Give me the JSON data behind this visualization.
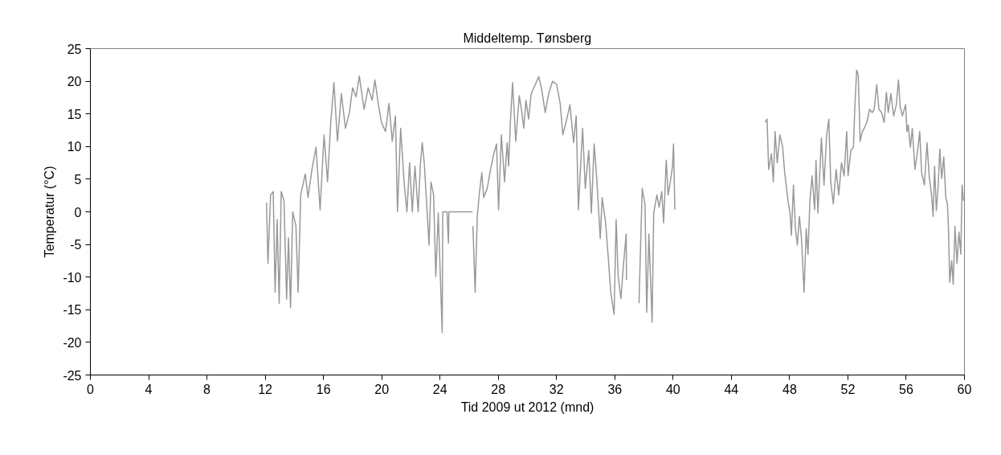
{
  "chart_data": {
    "type": "line",
    "title": "Middeltemp. Tønsberg",
    "xlabel": "Tid 2009 ut 2012 (mnd)",
    "ylabel": "Temperatur (°C)",
    "xlim": [
      0,
      60
    ],
    "xticks": [
      0,
      4,
      8,
      12,
      16,
      20,
      24,
      28,
      32,
      36,
      40,
      44,
      48,
      52,
      56,
      60
    ],
    "ylim": [
      -25,
      25
    ],
    "yticks": [
      -25,
      -20,
      -15,
      -10,
      -5,
      0,
      5,
      10,
      15,
      20,
      25
    ],
    "grid": false,
    "line_style": "solid",
    "series": [
      {
        "color": "#999999",
        "x": [
          12.09,
          12.19,
          12.37,
          12.55,
          12.68,
          12.82,
          12.96,
          13.1,
          13.29,
          13.47,
          13.6,
          13.74,
          13.89,
          14.11,
          14.26,
          14.44,
          14.75,
          14.94,
          15.21,
          15.49,
          15.77,
          16.04,
          16.28,
          16.5,
          16.72,
          16.96,
          17.23,
          17.51,
          17.78,
          18.0,
          18.24,
          18.46,
          18.79,
          19.07,
          19.34,
          19.53,
          19.76,
          19.98,
          20.26,
          20.5,
          20.72,
          20.94,
          21.08,
          21.3,
          21.55,
          21.73,
          21.91,
          22.1,
          22.28,
          22.5,
          22.65,
          22.78,
          22.92,
          23.07,
          23.25,
          23.38,
          23.56,
          23.71,
          23.88,
          24.15,
          24.19,
          24.48,
          24.58,
          24.61,
          26.23,
          26.24,
          26.26,
          26.41,
          26.56,
          26.69,
          26.87,
          27.0,
          27.24,
          27.47,
          27.69,
          27.88,
          28.02,
          28.21,
          28.43,
          28.61,
          28.71,
          28.83,
          28.98,
          29.2,
          29.44,
          29.62,
          29.75,
          29.9,
          30.08,
          30.26,
          30.54,
          30.78,
          31.0,
          31.22,
          31.46,
          31.73,
          32.01,
          32.25,
          32.43,
          32.65,
          32.92,
          33.17,
          33.35,
          33.5,
          33.66,
          33.79,
          33.97,
          34.21,
          34.39,
          34.58,
          34.76,
          35.0,
          35.13,
          35.37,
          35.55,
          35.72,
          35.95,
          36.09,
          36.23,
          36.42,
          36.6,
          36.78,
          36.8,
          37.2,
          37.66,
          37.88,
          38.07,
          38.19,
          38.34,
          38.56,
          38.67,
          38.89,
          39.04,
          39.22,
          39.35,
          39.53,
          39.66,
          39.81,
          39.96,
          40.03,
          40.12,
          43.0,
          46.33,
          46.45,
          46.56,
          46.75,
          46.88,
          47.0,
          47.15,
          47.33,
          47.52,
          47.66,
          47.89,
          48.03,
          48.12,
          48.26,
          48.4,
          48.53,
          48.67,
          48.81,
          48.99,
          49.14,
          49.26,
          49.39,
          49.54,
          49.72,
          49.81,
          49.94,
          50.18,
          50.36,
          50.54,
          50.69,
          50.82,
          51.0,
          51.19,
          51.37,
          51.56,
          51.74,
          51.92,
          52.01,
          52.2,
          52.38,
          52.47,
          52.6,
          52.71,
          52.84,
          52.99,
          53.12,
          53.3,
          53.49,
          53.67,
          53.8,
          53.98,
          54.13,
          54.31,
          54.49,
          54.64,
          54.77,
          54.95,
          55.14,
          55.32,
          55.47,
          55.59,
          55.74,
          55.96,
          56.05,
          56.14,
          56.29,
          56.42,
          56.6,
          56.79,
          56.93,
          57.06,
          57.25,
          57.43,
          57.58,
          57.74,
          57.85,
          57.95,
          58.07,
          58.2,
          58.31,
          58.44,
          58.58,
          58.72,
          58.83,
          58.9,
          58.99,
          59.12,
          59.23,
          59.35,
          59.49,
          59.62,
          59.75,
          59.84,
          59.93
        ],
        "values": [
          1.4,
          -7.9,
          2.6,
          3.1,
          -12.3,
          -1.2,
          -14,
          3.1,
          1.7,
          -13.4,
          -4,
          -14.7,
          0,
          -2.2,
          -12.3,
          2.6,
          5.8,
          2.2,
          6.5,
          9.9,
          0.3,
          11.8,
          4.6,
          13.7,
          19.8,
          10.8,
          18.1,
          12.8,
          15.2,
          19,
          17.6,
          20.8,
          15.7,
          19,
          17.1,
          20.2,
          16.6,
          13.7,
          12.3,
          16.6,
          10.8,
          14.7,
          0,
          12.8,
          4.1,
          0,
          7.5,
          0,
          7,
          0,
          7.2,
          10.6,
          7.5,
          1.7,
          -5.1,
          4.6,
          2.6,
          -9.9,
          -0.2,
          -18.5,
          0,
          0,
          -4.8,
          0,
          0,
          null,
          -2.2,
          -12.3,
          -0.7,
          2.6,
          6,
          2.2,
          3.6,
          6.5,
          8.9,
          10.4,
          0.3,
          11.8,
          4.6,
          10.6,
          7,
          13.7,
          19.8,
          10.8,
          17.8,
          15.2,
          12.8,
          17.1,
          14.2,
          18.1,
          19.5,
          20.7,
          18.5,
          15.2,
          18.1,
          20,
          19.5,
          16.6,
          11.8,
          13.7,
          16.4,
          10.6,
          14.7,
          0.3,
          7.5,
          12.8,
          3.6,
          9.4,
          -0.2,
          10.4,
          5.1,
          -4.1,
          2.2,
          -1.7,
          -7,
          -12.3,
          -15.7,
          -1.2,
          -9.9,
          -13.3,
          -7.9,
          -3.4,
          -10.4,
          null,
          -14,
          3.6,
          1.2,
          -15.4,
          -3.4,
          -16.9,
          -0.2,
          2.6,
          0.7,
          3.1,
          -1.7,
          7.9,
          2.6,
          4.6,
          7,
          10.4,
          0.3,
          null,
          13.7,
          14.2,
          6.5,
          8.9,
          4.6,
          12.3,
          7.5,
          11.8,
          9.9,
          6,
          1.7,
          -0.2,
          -3.6,
          4.1,
          -2.6,
          -5.1,
          -0.7,
          -4,
          -12.3,
          -2.6,
          -6.5,
          1.7,
          5.5,
          0.3,
          7.9,
          -0.2,
          11.3,
          4.1,
          11.8,
          14.2,
          4.6,
          1.2,
          6.5,
          2.6,
          7.5,
          5.5,
          12.3,
          5.5,
          9.4,
          9.9,
          15.7,
          21.7,
          21,
          10.8,
          12.3,
          12.8,
          13.7,
          15.7,
          15.2,
          15.7,
          19.5,
          15.7,
          15.2,
          13.7,
          18.3,
          15.2,
          18.1,
          14.7,
          16.4,
          20.2,
          16.1,
          14.7,
          16.4,
          12.3,
          13.3,
          9.9,
          12.8,
          6.5,
          9.4,
          12.3,
          6,
          4.1,
          10.6,
          5.5,
          2.6,
          -0.7,
          7,
          0.2,
          4.1,
          9.6,
          5.1,
          8.4,
          2.2,
          1.2,
          -2.2,
          -10.8,
          -7.5,
          -11.1,
          -2.2,
          -7.9,
          -3.1,
          -6.5,
          4.1,
          1.7
        ]
      }
    ]
  }
}
